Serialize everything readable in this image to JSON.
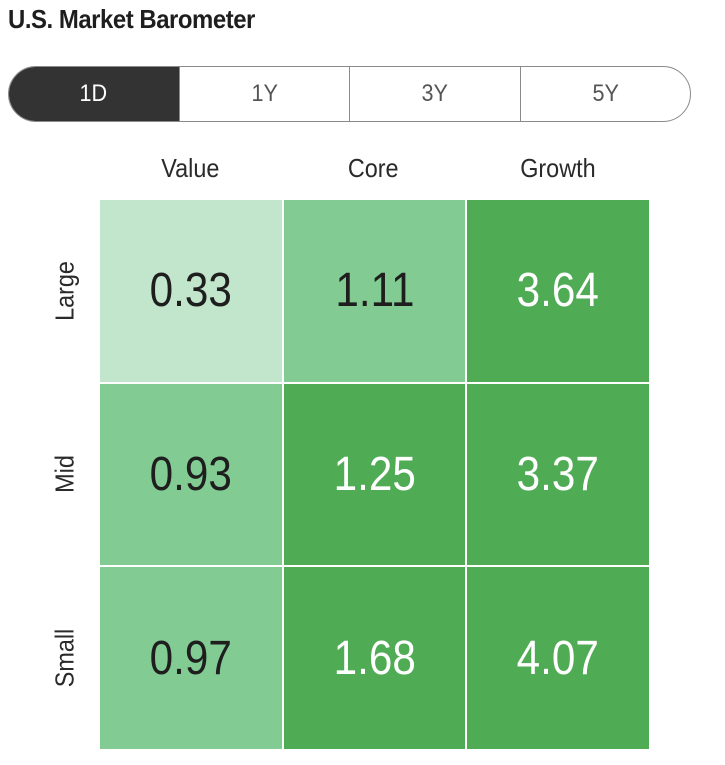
{
  "title": "U.S. Market Barometer",
  "tabs": [
    {
      "label": "1D",
      "active": true
    },
    {
      "label": "1Y",
      "active": false
    },
    {
      "label": "3Y",
      "active": false
    },
    {
      "label": "5Y",
      "active": false
    }
  ],
  "chart_data": {
    "type": "heatmap",
    "title": "U.S. Market Barometer",
    "period": "1D",
    "columns": [
      "Value",
      "Core",
      "Growth"
    ],
    "rows": [
      "Large",
      "Mid",
      "Small"
    ],
    "values": [
      [
        0.33,
        1.11,
        3.64
      ],
      [
        0.93,
        1.25,
        3.37
      ],
      [
        0.97,
        1.68,
        4.07
      ]
    ],
    "value_labels": [
      [
        "0.33",
        "1.11",
        "3.64"
      ],
      [
        "0.93",
        "1.25",
        "3.37"
      ],
      [
        "0.97",
        "1.68",
        "4.07"
      ]
    ],
    "colors": {
      "light": "#c2e6cc",
      "medium": "#82cc93",
      "dark": "#4fac54",
      "text_dark": "#1e1e1e",
      "text_light": "#ffffff"
    }
  }
}
